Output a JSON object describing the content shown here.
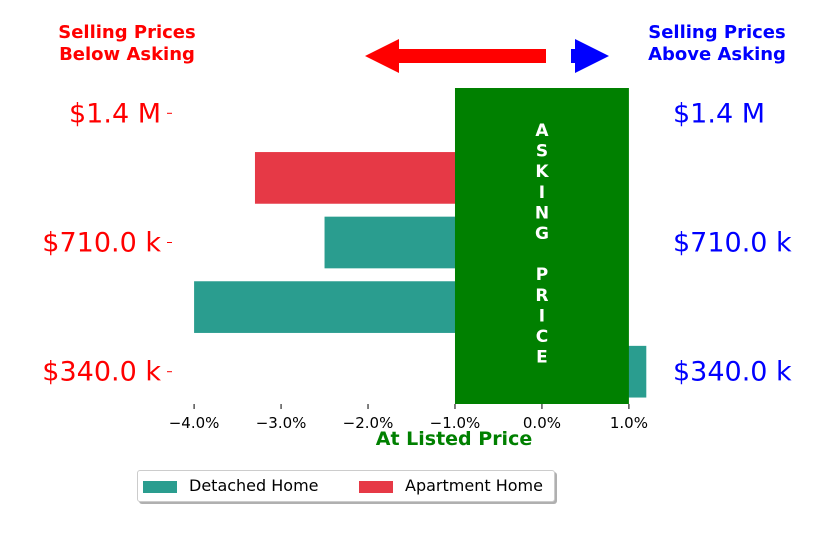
{
  "chart_data": {
    "type": "bar",
    "orientation": "horizontal",
    "title": "",
    "xlabel": "At Listed Price",
    "xlim": [
      -4.3,
      1.3
    ],
    "x_ticks": [
      -4.0,
      -3.0,
      -2.0,
      -1.0,
      0.0,
      1.0
    ],
    "x_tick_labels": [
      "−4.0%",
      "−3.0%",
      "−2.0%",
      "−1.0%",
      "0.0%",
      "1.0%"
    ],
    "ylim": [
      -0.5,
      4.5
    ],
    "y_ticks": [
      0,
      2,
      4
    ],
    "y_tick_labels_left": [
      "$340.0 k",
      "$710.0 k",
      "$1.4 M"
    ],
    "y_tick_labels_right": [
      "$340.0 k",
      "$710.0 k",
      "$1.4 M"
    ],
    "bars": [
      {
        "series": "Detached Home",
        "y": 0,
        "value": 1.2
      },
      {
        "series": "Detached Home",
        "y": 1,
        "value": -4.0
      },
      {
        "series": "Detached Home",
        "y": 2,
        "value": -2.5
      },
      {
        "series": "Apartment Home",
        "y": 3,
        "value": -3.3
      }
    ],
    "series": [
      {
        "name": "Detached Home",
        "color": "#2a9d8f"
      },
      {
        "name": "Apartment Home",
        "color": "#e63946"
      }
    ],
    "asking_band": {
      "x_from": -1.0,
      "x_to": 1.0,
      "color": "#008000",
      "label": "ASKING PRICE",
      "letters": [
        "A",
        "S",
        "K",
        "I",
        "N",
        "G",
        "",
        "P",
        "R",
        "I",
        "C",
        "E"
      ]
    },
    "annotations": {
      "left_title_line1": "Selling Prices",
      "left_title_line2": "Below Asking",
      "right_title_line1": "Selling Prices",
      "right_title_line2": "Above Asking",
      "left_color": "#ff0000",
      "right_color": "#0000ff",
      "xlabel_color": "#008000"
    },
    "legend_placement": "bottom-left"
  }
}
